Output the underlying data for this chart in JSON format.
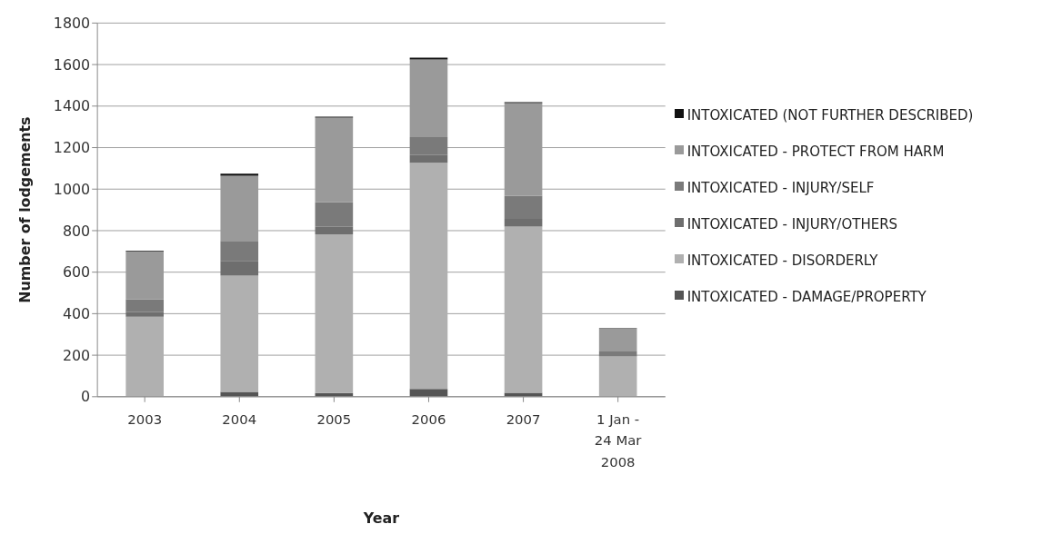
{
  "chart_data": {
    "type": "bar",
    "stacked": true,
    "xlabel": "Year",
    "ylabel": "Number of lodgements",
    "categories": [
      "2003",
      "2004",
      "2005",
      "2006",
      "2007",
      "1 Jan - 24 Mar 2008"
    ],
    "series": [
      {
        "name": "INTOXICATED - DAMAGE/PROPERTY",
        "color": "#555555",
        "values": [
          0,
          23,
          18,
          38,
          19,
          0
        ]
      },
      {
        "name": "INTOXICATED - DISORDERLY",
        "color": "#b0b0b0",
        "values": [
          385,
          560,
          764,
          1089,
          800,
          194
        ]
      },
      {
        "name": "INTOXICATED - INJURY/OTHERS",
        "color": "#6e6e6e",
        "values": [
          22,
          71,
          36,
          37,
          38,
          0
        ]
      },
      {
        "name": "INTOXICATED - INJURY/SELF",
        "color": "#7a7a7a",
        "values": [
          62,
          97,
          119,
          86,
          110,
          24
        ]
      },
      {
        "name": "INTOXICATED - PROTECT FROM HARM",
        "color": "#9a9a9a",
        "values": [
          230,
          314,
          407,
          374,
          447,
          109
        ]
      },
      {
        "name": "INTOXICATED (NOT FURTHER DESCRIBED)",
        "color": "#111111",
        "values": [
          3,
          9,
          5,
          9,
          5,
          3
        ]
      }
    ],
    "ylim": [
      0,
      1800
    ],
    "yticks": [
      0,
      200,
      400,
      600,
      800,
      1000,
      1200,
      1400,
      1600,
      1800
    ],
    "grid": "y",
    "legend": "right"
  }
}
